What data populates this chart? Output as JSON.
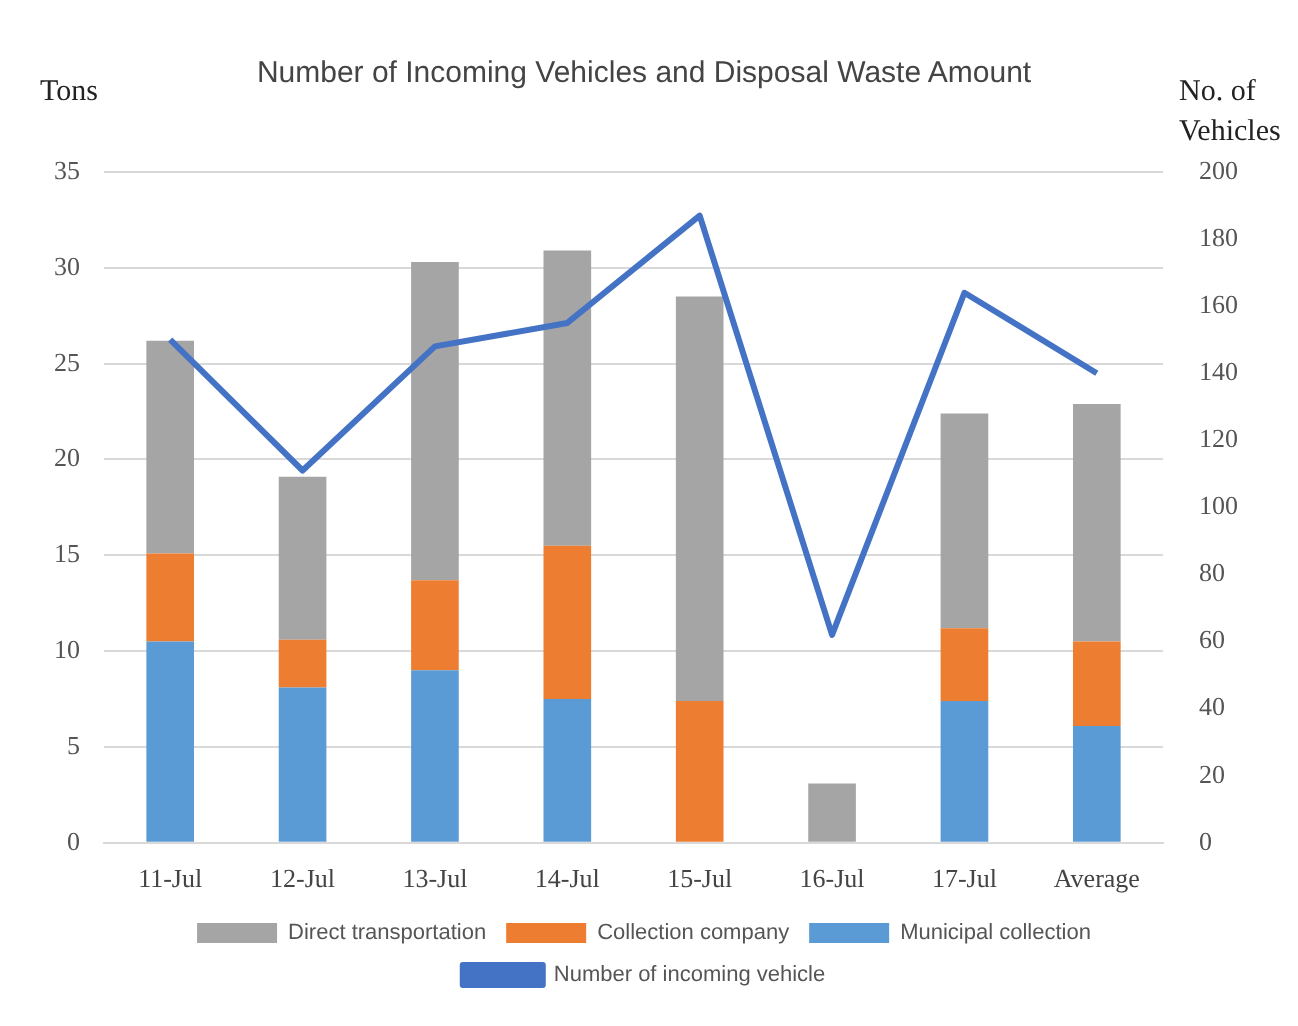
{
  "chart_data": {
    "type": "bar",
    "title": "Number of Incoming Vehicles and Disposal Waste Amount",
    "ylabel": "Tons",
    "y2label": "No. of Vehicles",
    "categories": [
      "11-Jul",
      "12-Jul",
      "13-Jul",
      "14-Jul",
      "15-Jul",
      "16-Jul",
      "17-Jul",
      "Average"
    ],
    "stacked": true,
    "series": [
      {
        "name": "Municipal collection",
        "color": "#5b9bd5",
        "values": [
          10.5,
          8.1,
          9.0,
          7.5,
          null,
          null,
          7.4,
          6.1
        ]
      },
      {
        "name": "Collection company",
        "color": "#ed7d31",
        "values": [
          4.6,
          2.5,
          4.7,
          8.0,
          7.4,
          null,
          3.8,
          4.4
        ]
      },
      {
        "name": "Direct transportation",
        "color": "#a5a5a5",
        "values": [
          11.1,
          8.5,
          16.6,
          15.4,
          21.1,
          3.1,
          11.2,
          12.4
        ]
      },
      {
        "name": "Number of incoming vehicle",
        "type": "line",
        "axis": "y2",
        "color": "#4472c4",
        "values": [
          150,
          111,
          148,
          155,
          187,
          62,
          164,
          140
        ]
      }
    ],
    "ylim": [
      0,
      35
    ],
    "yticks": [
      0,
      5,
      10,
      15,
      20,
      25,
      30,
      35
    ],
    "y2lim": [
      0,
      200
    ],
    "y2ticks": [
      0,
      20,
      40,
      60,
      80,
      100,
      120,
      140,
      160,
      180,
      200
    ],
    "grid": "y",
    "legend": "bottom",
    "marker": "none",
    "line_style": "solid"
  }
}
